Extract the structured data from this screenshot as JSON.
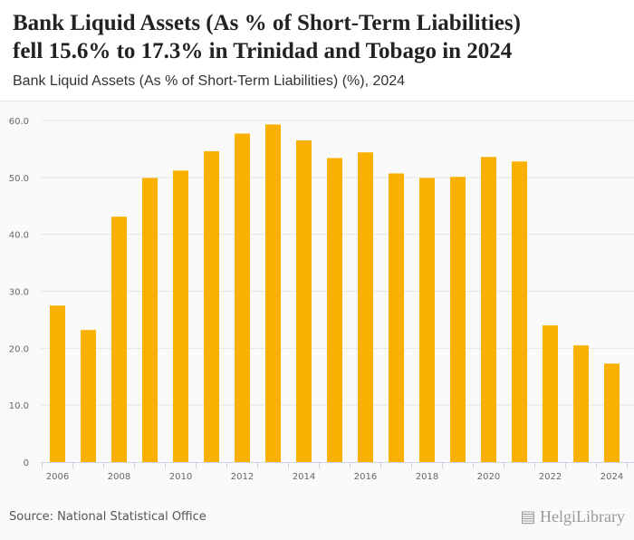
{
  "header": {
    "title_line1": "Bank Liquid Assets (As % of Short-Term Liabilities)",
    "title_line2": "fell 15.6% to 17.3% in Trinidad and Tobago in 2024",
    "subtitle": "Bank Liquid Assets (As % of Short-Term Liabilities) (%), 2024"
  },
  "footer": {
    "source": "Source: National Statistical Office",
    "logo": "HelgiLibrary"
  },
  "colors": {
    "bar": "#f9b000",
    "grid": "#e6e6e6",
    "axis": "#c9d5e8"
  },
  "chart_data": {
    "type": "bar",
    "title": "Bank Liquid Assets (As % of Short-Term Liabilities) (%), 2024",
    "xlabel": "",
    "ylabel": "",
    "categories": [
      "2006",
      "2007",
      "2008",
      "2009",
      "2010",
      "2011",
      "2012",
      "2013",
      "2014",
      "2015",
      "2016",
      "2017",
      "2018",
      "2019",
      "2020",
      "2021",
      "2022",
      "2023",
      "2024"
    ],
    "values": [
      27.5,
      23.2,
      43.1,
      49.9,
      51.2,
      54.6,
      57.7,
      59.3,
      56.5,
      53.4,
      54.4,
      50.7,
      49.9,
      50.1,
      53.6,
      52.8,
      24.0,
      20.5,
      17.3
    ],
    "xtick_labels": [
      "2006",
      "2008",
      "2010",
      "2012",
      "2014",
      "2016",
      "2018",
      "2020",
      "2022",
      "2024"
    ],
    "yticks": [
      0,
      10,
      20,
      30,
      40,
      50,
      60
    ],
    "ytick_labels": [
      "0",
      "10.0",
      "20.0",
      "30.0",
      "40.0",
      "50.0",
      "60.0"
    ],
    "ylim": [
      0,
      60
    ],
    "grid": true,
    "legend": "none"
  }
}
